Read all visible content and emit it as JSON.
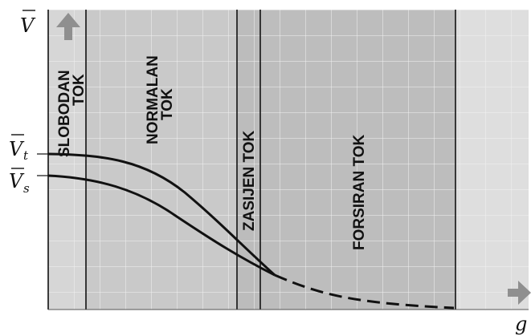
{
  "axes": {
    "y_label": "V",
    "x_label": "g",
    "vt_label": {
      "base": "V",
      "sub": "t"
    },
    "vs_label": {
      "base": "V",
      "sub": "s"
    }
  },
  "regions": {
    "slobodan": {
      "line1": "SLOBODAN",
      "line2": "TOK"
    },
    "normalan": {
      "line1": "NORMALAN",
      "line2": "TOK"
    },
    "zasicen": {
      "line1": "ZASIJEN  TOK"
    },
    "forsiran": {
      "line1": "FORSIRAN TOK"
    }
  },
  "colors": {
    "plot_bg": "#dedede",
    "normal_region": "#c9c9c9",
    "saturated_region": "#bcbcbc",
    "forced_region": "#bdbdbd",
    "free_region": "#d6d6d6",
    "grid": "#f2f2f2",
    "curve": "#111111",
    "arrow": "#8f8f8f"
  },
  "icons": {
    "y_arrow": "arrow-up-icon",
    "x_arrow": "arrow-right-icon"
  }
}
